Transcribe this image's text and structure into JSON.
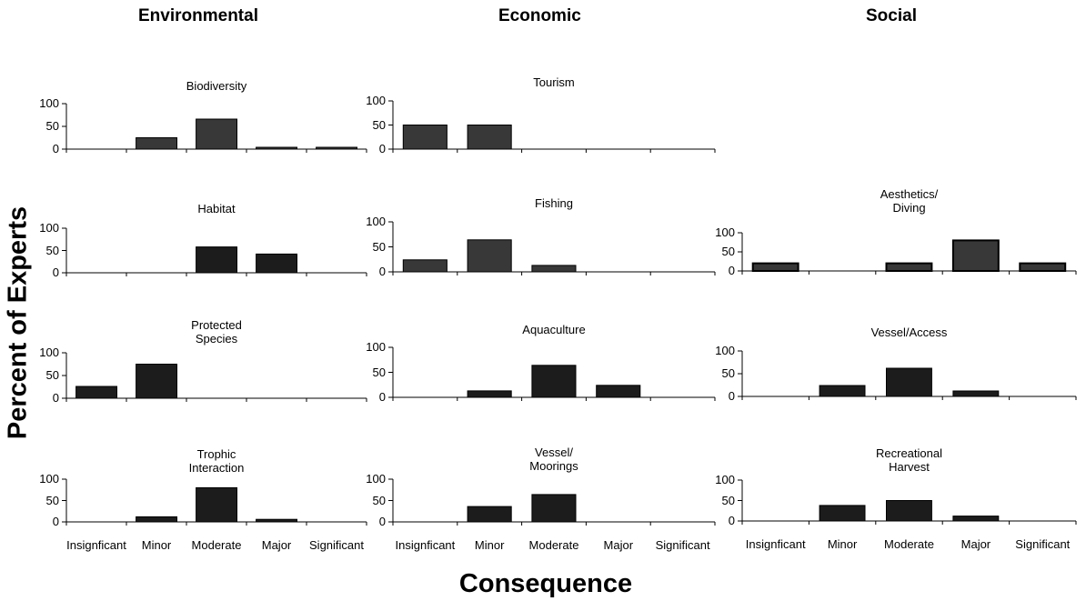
{
  "figure": {
    "ylabel": "Percent of Experts",
    "xlabel": "Consequence"
  },
  "columns": [
    "Environmental",
    "Economic",
    "Social"
  ],
  "chart_data": [
    {
      "type": "bar",
      "title": "Biodiversity",
      "column": "Environmental",
      "categories": [
        "Insignficant",
        "Minor",
        "Moderate",
        "Major",
        "Significant"
      ],
      "values": [
        0,
        25,
        66,
        3,
        3
      ],
      "ylim": [
        0,
        100
      ],
      "yticks": [
        0,
        50,
        100
      ],
      "show_xticks": false
    },
    {
      "type": "bar",
      "title": "Habitat",
      "column": "Environmental",
      "categories": [
        "Insignficant",
        "Minor",
        "Moderate",
        "Major",
        "Significant"
      ],
      "values": [
        0,
        0,
        58,
        42,
        0
      ],
      "ylim": [
        0,
        100
      ],
      "yticks": [
        0,
        50,
        100
      ],
      "show_xticks": false
    },
    {
      "type": "bar",
      "title": "Protected\nSpecies",
      "column": "Environmental",
      "categories": [
        "Insignficant",
        "Minor",
        "Moderate",
        "Major",
        "Significant"
      ],
      "values": [
        26,
        75,
        0,
        0,
        0
      ],
      "ylim": [
        0,
        100
      ],
      "yticks": [
        0,
        50,
        100
      ],
      "show_xticks": false
    },
    {
      "type": "bar",
      "title": "Trophic\nInteraction",
      "column": "Environmental",
      "categories": [
        "Insignficant",
        "Minor",
        "Moderate",
        "Major",
        "Significant"
      ],
      "values": [
        0,
        12,
        80,
        6,
        0
      ],
      "ylim": [
        0,
        100
      ],
      "yticks": [
        0,
        50,
        100
      ],
      "show_xticks": true
    },
    {
      "type": "bar",
      "title": "Tourism",
      "column": "Economic",
      "categories": [
        "Insignficant",
        "Minor",
        "Moderate",
        "Major",
        "Significant"
      ],
      "values": [
        50,
        50,
        0,
        0,
        0
      ],
      "ylim": [
        0,
        100
      ],
      "yticks": [
        0,
        50,
        100
      ],
      "show_xticks": false
    },
    {
      "type": "bar",
      "title": "Fishing",
      "column": "Economic",
      "categories": [
        "Insignficant",
        "Minor",
        "Moderate",
        "Major",
        "Significant"
      ],
      "values": [
        24,
        64,
        13,
        0,
        0
      ],
      "ylim": [
        0,
        100
      ],
      "yticks": [
        0,
        50,
        100
      ],
      "show_xticks": false
    },
    {
      "type": "bar",
      "title": "Aquaculture",
      "column": "Economic",
      "categories": [
        "Insignficant",
        "Minor",
        "Moderate",
        "Major",
        "Significant"
      ],
      "values": [
        0,
        13,
        64,
        24,
        0
      ],
      "ylim": [
        0,
        100
      ],
      "yticks": [
        0,
        50,
        100
      ],
      "show_xticks": false
    },
    {
      "type": "bar",
      "title": "Vessel/\nMoorings",
      "column": "Economic",
      "categories": [
        "Insignficant",
        "Minor",
        "Moderate",
        "Major",
        "Significant"
      ],
      "values": [
        0,
        36,
        64,
        0,
        0
      ],
      "ylim": [
        0,
        100
      ],
      "yticks": [
        0,
        50,
        100
      ],
      "show_xticks": true
    },
    {
      "type": "bar",
      "title": "Aesthetics/\nDiving",
      "column": "Social",
      "categories": [
        "Insignficant",
        "Minor",
        "Moderate",
        "Major",
        "Significant"
      ],
      "values": [
        20,
        0,
        20,
        80,
        20
      ],
      "ylim": [
        0,
        100
      ],
      "yticks": [
        0,
        50,
        100
      ],
      "show_xticks": false
    },
    {
      "type": "bar",
      "title": "Vessel/Access",
      "column": "Social",
      "categories": [
        "Insignficant",
        "Minor",
        "Moderate",
        "Major",
        "Significant"
      ],
      "values": [
        0,
        24,
        62,
        12,
        0
      ],
      "ylim": [
        0,
        100
      ],
      "yticks": [
        0,
        50,
        100
      ],
      "show_xticks": false
    },
    {
      "type": "bar",
      "title": "Recreational\nHarvest",
      "column": "Social",
      "categories": [
        "Insignficant",
        "Minor",
        "Moderate",
        "Major",
        "Significant"
      ],
      "values": [
        0,
        38,
        50,
        12,
        0
      ],
      "ylim": [
        0,
        100
      ],
      "yticks": [
        0,
        50,
        100
      ],
      "show_xticks": true
    }
  ],
  "colors": {
    "bar_dark": "#1c1c1c",
    "bar_grey": "#383838",
    "axis": "#000000"
  }
}
